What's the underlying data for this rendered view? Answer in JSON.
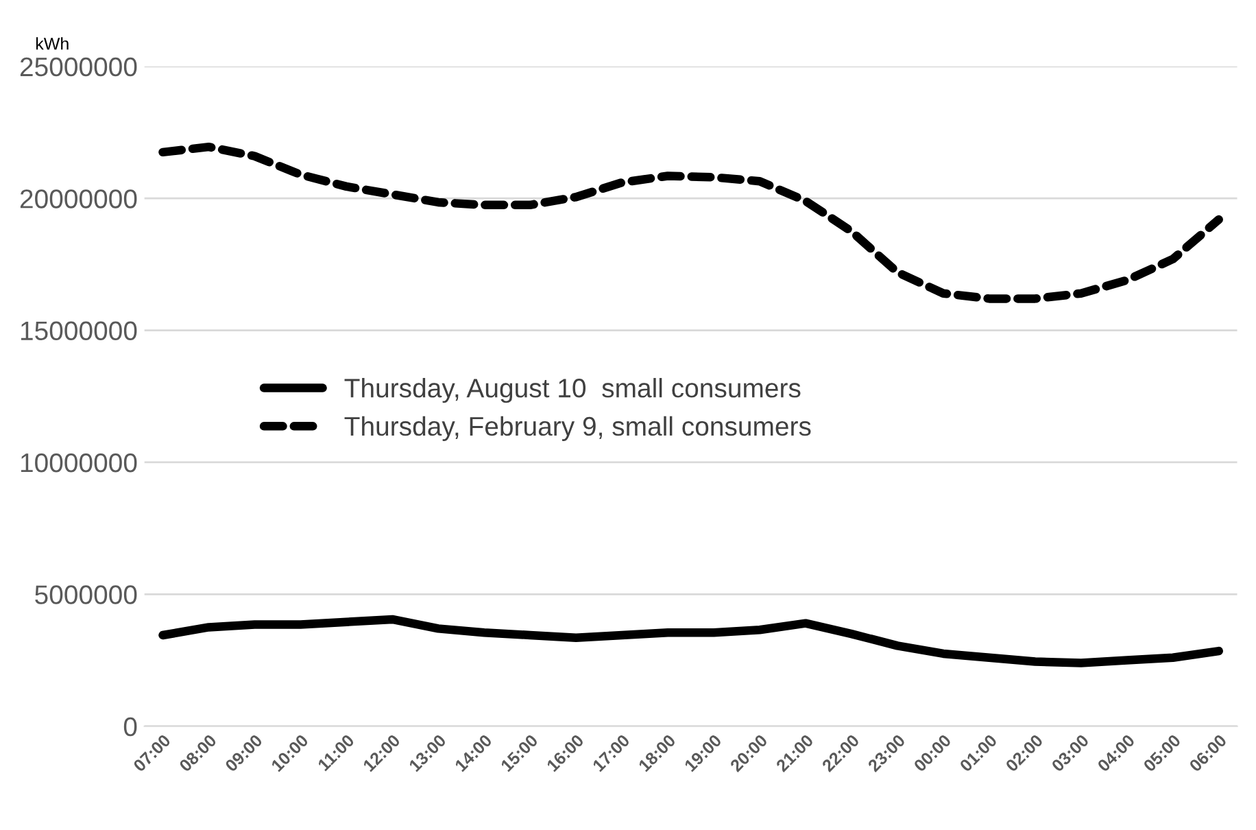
{
  "chart_data": {
    "type": "line",
    "ylabel": "kWh",
    "categories": [
      "07:00",
      "08:00",
      "09:00",
      "10:00",
      "11:00",
      "12:00",
      "13:00",
      "14:00",
      "15:00",
      "16:00",
      "17:00",
      "18:00",
      "19:00",
      "20:00",
      "21:00",
      "22:00",
      "23:00",
      "00:00",
      "01:00",
      "02:00",
      "03:00",
      "04:00",
      "05:00",
      "06:00"
    ],
    "series": [
      {
        "name": "Thursday, August 10  small consumers",
        "color": "#000000",
        "line_style": "solid",
        "values": [
          3450000,
          3750000,
          3850000,
          3850000,
          3950000,
          4050000,
          3700000,
          3550000,
          3450000,
          3350000,
          3450000,
          3550000,
          3550000,
          3650000,
          3900000,
          3500000,
          3050000,
          2750000,
          2600000,
          2450000,
          2400000,
          2500000,
          2600000,
          2850000
        ]
      },
      {
        "name": "Thursday, February 9, small consumers",
        "color": "#000000",
        "line_style": "dashed",
        "values": [
          21750000,
          21950000,
          21600000,
          20900000,
          20450000,
          20150000,
          19850000,
          19750000,
          19750000,
          20050000,
          20600000,
          20850000,
          20800000,
          20650000,
          19900000,
          18750000,
          17200000,
          16400000,
          16200000,
          16200000,
          16400000,
          16900000,
          17700000,
          19200000
        ]
      }
    ],
    "ylim": [
      0,
      25000000
    ],
    "yticks": [
      0,
      5000000,
      10000000,
      15000000,
      20000000,
      25000000
    ],
    "grid": "y",
    "legend": "center",
    "marker": "none"
  }
}
